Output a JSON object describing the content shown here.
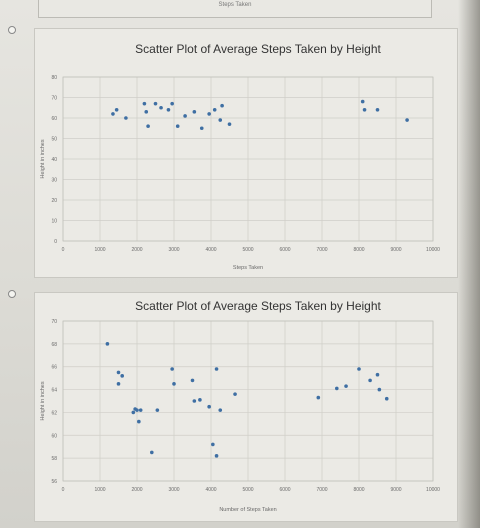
{
  "top_strip_label": "Steps Taken",
  "colors": {
    "point": "#3f6fa3",
    "grid": "#cfcec8",
    "axis_text": "#6a6a6a",
    "title": "#333333"
  },
  "chart_data": [
    {
      "type": "scatter",
      "title": "Scatter Plot of Average Steps Taken by Height",
      "xlabel": "Steps Taken",
      "ylabel": "Height in inches",
      "xlim": [
        0,
        10000
      ],
      "ylim": [
        0,
        80
      ],
      "xticks": [
        0,
        1000,
        2000,
        3000,
        4000,
        5000,
        6000,
        7000,
        8000,
        9000,
        10000
      ],
      "yticks": [
        0,
        10,
        20,
        30,
        40,
        50,
        60,
        70,
        80
      ],
      "grid": true,
      "points": [
        {
          "x": 1350,
          "y": 62
        },
        {
          "x": 1450,
          "y": 64
        },
        {
          "x": 1700,
          "y": 60
        },
        {
          "x": 2200,
          "y": 67
        },
        {
          "x": 2250,
          "y": 63
        },
        {
          "x": 2300,
          "y": 56
        },
        {
          "x": 2500,
          "y": 67
        },
        {
          "x": 2650,
          "y": 65
        },
        {
          "x": 2850,
          "y": 64
        },
        {
          "x": 2950,
          "y": 67
        },
        {
          "x": 3100,
          "y": 56
        },
        {
          "x": 3300,
          "y": 61
        },
        {
          "x": 3550,
          "y": 63
        },
        {
          "x": 3750,
          "y": 55
        },
        {
          "x": 3950,
          "y": 62
        },
        {
          "x": 4100,
          "y": 64
        },
        {
          "x": 4250,
          "y": 59
        },
        {
          "x": 4300,
          "y": 66
        },
        {
          "x": 4500,
          "y": 57
        },
        {
          "x": 8100,
          "y": 68
        },
        {
          "x": 8150,
          "y": 64
        },
        {
          "x": 8500,
          "y": 64
        },
        {
          "x": 9300,
          "y": 59
        }
      ]
    },
    {
      "type": "scatter",
      "title": "Scatter Plot of Average Steps Taken by Height",
      "xlabel": "Number of Steps Taken",
      "ylabel": "Height in inches",
      "xlim": [
        0,
        10000
      ],
      "ylim": [
        56,
        70
      ],
      "xticks": [
        0,
        1000,
        2000,
        3000,
        4000,
        5000,
        6000,
        7000,
        8000,
        9000,
        10000
      ],
      "yticks": [
        56,
        58,
        60,
        62,
        64,
        66,
        68,
        70
      ],
      "grid": true,
      "points": [
        {
          "x": 1200,
          "y": 68
        },
        {
          "x": 1500,
          "y": 65.5
        },
        {
          "x": 1600,
          "y": 65.2
        },
        {
          "x": 1500,
          "y": 64.5
        },
        {
          "x": 1900,
          "y": 62
        },
        {
          "x": 1950,
          "y": 62.3
        },
        {
          "x": 2000,
          "y": 62.2
        },
        {
          "x": 2050,
          "y": 61.2
        },
        {
          "x": 2100,
          "y": 62.2
        },
        {
          "x": 2400,
          "y": 58.5
        },
        {
          "x": 2550,
          "y": 62.2
        },
        {
          "x": 2950,
          "y": 65.8
        },
        {
          "x": 3000,
          "y": 64.5
        },
        {
          "x": 3500,
          "y": 64.8
        },
        {
          "x": 3550,
          "y": 63
        },
        {
          "x": 3700,
          "y": 63.1
        },
        {
          "x": 3950,
          "y": 62.5
        },
        {
          "x": 4050,
          "y": 59.2
        },
        {
          "x": 4150,
          "y": 58.2
        },
        {
          "x": 4150,
          "y": 65.8
        },
        {
          "x": 4250,
          "y": 62.2
        },
        {
          "x": 4650,
          "y": 63.6
        },
        {
          "x": 6900,
          "y": 63.3
        },
        {
          "x": 7400,
          "y": 64.1
        },
        {
          "x": 7650,
          "y": 64.3
        },
        {
          "x": 8000,
          "y": 65.8
        },
        {
          "x": 8300,
          "y": 64.8
        },
        {
          "x": 8500,
          "y": 65.3
        },
        {
          "x": 8550,
          "y": 64
        },
        {
          "x": 8750,
          "y": 63.2
        }
      ]
    }
  ]
}
